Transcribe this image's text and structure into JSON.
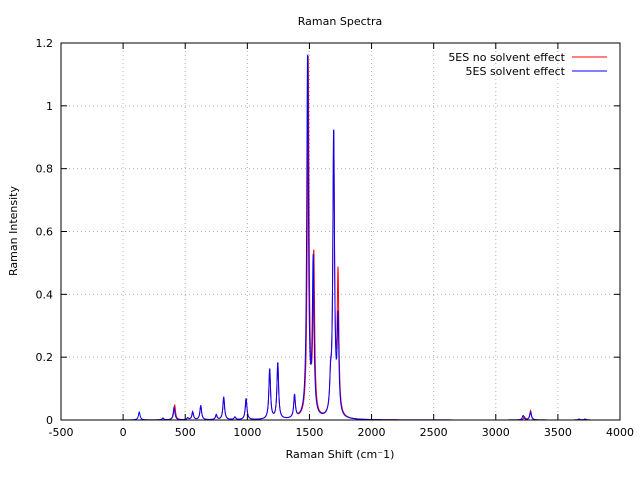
{
  "chart_data": {
    "type": "line",
    "title": "Raman Spectra",
    "xlabel": "Raman Shift (cm⁻1)",
    "ylabel": "Raman Intensity",
    "xlim": [
      -500,
      4000
    ],
    "ylim": [
      0,
      1.2
    ],
    "xticks": [
      -500,
      0,
      500,
      1000,
      1500,
      2000,
      2500,
      3000,
      3500,
      4000
    ],
    "yticks": [
      0,
      0.2,
      0.4,
      0.6,
      0.8,
      1.0,
      1.2
    ],
    "xtick_labels": [
      "-500",
      "0",
      "500",
      "1000",
      "1500",
      "2000",
      "2500",
      "3000",
      "3500",
      "4000"
    ],
    "ytick_labels": [
      "0",
      "0.2",
      "0.4",
      "0.6",
      "0.8",
      "1",
      "1.2"
    ],
    "grid": true,
    "legend_position": "top-right",
    "series": [
      {
        "name": "5ES no solvent effect",
        "color": "#ff0000",
        "width": 8,
        "peaks": [
          [
            320,
            0.006
          ],
          [
            415,
            0.048
          ],
          [
            520,
            0.006
          ],
          [
            560,
            0.022
          ],
          [
            625,
            0.045
          ],
          [
            750,
            0.013
          ],
          [
            810,
            0.07
          ],
          [
            900,
            0.008
          ],
          [
            990,
            0.065
          ],
          [
            1180,
            0.158
          ],
          [
            1245,
            0.178
          ],
          [
            1380,
            0.072
          ],
          [
            1490,
            1.14
          ],
          [
            1535,
            0.51
          ],
          [
            1670,
            0.1
          ],
          [
            1695,
            0.9
          ],
          [
            1730,
            0.44
          ],
          [
            3230,
            0.01
          ],
          [
            3280,
            0.03
          ],
          [
            3670,
            0.003
          ],
          [
            3720,
            0.003
          ]
        ]
      },
      {
        "name": "5ES solvent effect",
        "color": "#0000ff",
        "width": 8,
        "peaks": [
          [
            130,
            0.025
          ],
          [
            320,
            0.005
          ],
          [
            410,
            0.04
          ],
          [
            520,
            0.006
          ],
          [
            560,
            0.026
          ],
          [
            625,
            0.045
          ],
          [
            750,
            0.016
          ],
          [
            810,
            0.073
          ],
          [
            900,
            0.008
          ],
          [
            990,
            0.068
          ],
          [
            1180,
            0.16
          ],
          [
            1245,
            0.18
          ],
          [
            1380,
            0.073
          ],
          [
            1485,
            1.16
          ],
          [
            1530,
            0.49
          ],
          [
            1670,
            0.09
          ],
          [
            1695,
            0.91
          ],
          [
            1730,
            0.3
          ],
          [
            3220,
            0.014
          ],
          [
            3280,
            0.025
          ],
          [
            3670,
            0.003
          ],
          [
            3720,
            0.003
          ]
        ]
      }
    ]
  }
}
